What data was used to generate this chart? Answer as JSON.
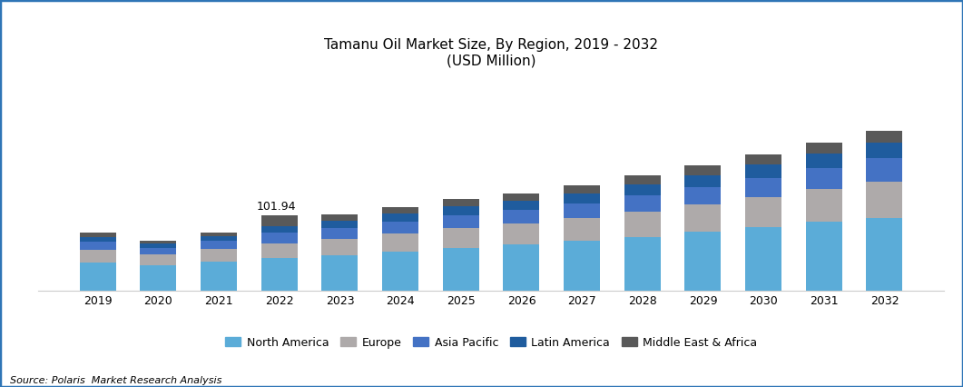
{
  "years": [
    2019,
    2020,
    2021,
    2022,
    2023,
    2024,
    2025,
    2026,
    2027,
    2028,
    2029,
    2030,
    2031,
    2032
  ],
  "north_america": [
    38,
    34,
    39,
    44,
    48,
    53,
    58,
    62,
    67,
    73,
    80,
    86,
    93,
    99
  ],
  "europe": [
    17,
    15,
    17,
    20,
    22,
    24,
    27,
    29,
    31,
    34,
    37,
    41,
    45,
    49
  ],
  "asia_pacific": [
    11,
    9,
    11,
    14,
    15,
    16,
    17,
    18,
    20,
    22,
    24,
    26,
    29,
    32
  ],
  "latin_america": [
    7,
    6,
    7,
    9,
    10,
    11,
    12,
    13,
    14,
    15,
    16,
    18,
    19,
    21
  ],
  "middle_east_africa": [
    5,
    4,
    5,
    14.94,
    8,
    9,
    10,
    10,
    11,
    12,
    13,
    14,
    15,
    16
  ],
  "annotation_year": 2022,
  "annotation_text": "101.94",
  "colors": {
    "north_america": "#5BACD8",
    "europe": "#AEAAAA",
    "asia_pacific": "#4472C4",
    "latin_america": "#1F5C9E",
    "middle_east_africa": "#595959"
  },
  "title_line1": "Tamanu Oil Market Size, By Region, 2019 - 2032",
  "title_line2": "(USD Million)",
  "legend_labels": [
    "North America",
    "Europe",
    "Asia Pacific",
    "Latin America",
    "Middle East & Africa"
  ],
  "source_text": "Source: Polaris  Market Research Analysis",
  "border_color": "#2E75B6",
  "background_color": "#FFFFFF",
  "ylim": [
    0,
    290
  ],
  "bar_width": 0.6
}
